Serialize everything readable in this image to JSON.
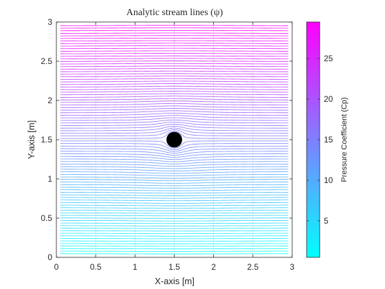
{
  "chart_data": {
    "type": "line",
    "title": "Analytic stream lines (ψ)",
    "xlabel": "X-axis [m]",
    "ylabel": "Y-axis [m]",
    "xlim": [
      0,
      3
    ],
    "ylim": [
      0,
      3
    ],
    "xticks": [
      0,
      0.5,
      1,
      1.5,
      2,
      2.5,
      3
    ],
    "xtick_labels": [
      "0",
      "0.5",
      "1",
      "1.5",
      "2",
      "2.5",
      "3"
    ],
    "yticks": [
      0,
      0.5,
      1,
      1.5,
      2,
      2.5,
      3
    ],
    "ytick_labels": [
      "0",
      "0.5",
      "1",
      "1.5",
      "2",
      "2.5",
      "3"
    ],
    "grid": true,
    "cylinder": {
      "center_x": 1.5,
      "center_y": 1.5,
      "radius": 0.1,
      "fill": "#000000"
    },
    "streamlines": {
      "x_start": 0.05,
      "x_end": 2.95,
      "y_min": 0.05,
      "y_max": 2.95,
      "count": 90,
      "flow": "uniform flow past a circular cylinder"
    },
    "colorbar": {
      "label": "Pressure Coefficient (Cp)",
      "ticks": [
        5,
        10,
        15,
        20,
        25
      ],
      "range": [
        0.5,
        29.5
      ],
      "colormap": "cool",
      "color_low": "#00ffff",
      "color_high": "#ff00ff"
    }
  }
}
